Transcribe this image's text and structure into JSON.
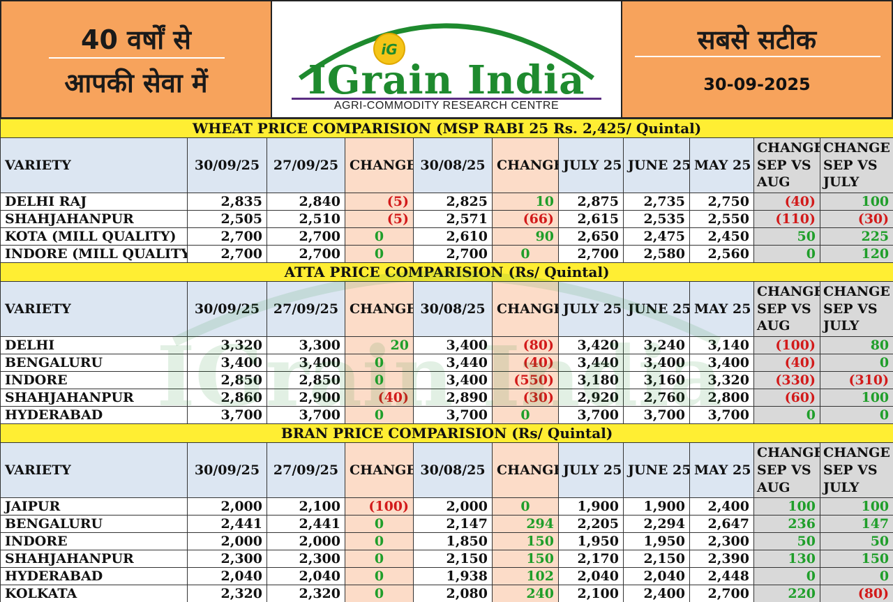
{
  "header": {
    "tagline_line1": "40 वर्षों से",
    "tagline_line2": "आपकी सेवा में",
    "accuracy": "सबसे सटीक",
    "date": "30-09-2025",
    "logo_mark": "iG",
    "logo_name": "IGrain India",
    "logo_subtitle": "AGRI-COMMODITY RESEARCH CENTRE"
  },
  "watermark": "IGrain India",
  "columns": [
    "VARIETY",
    "30/09/25",
    "27/09/25",
    "CHANGE",
    "30/08/25",
    "CHANGE",
    "JULY 25",
    "JUNE 25",
    "MAY 25",
    "CHANGE SEP VS AUG",
    "CHANGE SEP VS JULY"
  ],
  "colors": {
    "header_orange": "#f7a35c",
    "section_yellow": "#ffee33",
    "header_blue": "#dce6f2",
    "change_peach": "#fcdcc8",
    "compare_grey": "#d9d9d9",
    "negative_red": "#d21a1a",
    "positive_green": "#1f9e2a",
    "logo_green": "#1e8a2e"
  },
  "sections": [
    {
      "title": "WHEAT PRICE COMPARISION (MSP RABI 25 Rs. 2,425/ Quintal)",
      "rows": [
        [
          "DELHI RAJ",
          "2,835",
          "2,840",
          "(5)",
          "2,825",
          "10",
          "2,875",
          "2,735",
          "2,750",
          "(40)",
          "100"
        ],
        [
          "SHAHJAHANPUR",
          "2,505",
          "2,510",
          "(5)",
          "2,571",
          "(66)",
          "2,615",
          "2,535",
          "2,550",
          "(110)",
          "(30)"
        ],
        [
          "KOTA (MILL QUALITY)",
          "2,700",
          "2,700",
          "0",
          "2,610",
          "90",
          "2,650",
          "2,475",
          "2,450",
          "50",
          "225"
        ],
        [
          "INDORE (MILL QUALITY)",
          "2,700",
          "2,700",
          "0",
          "2,700",
          "0",
          "2,700",
          "2,580",
          "2,560",
          "0",
          "120"
        ]
      ]
    },
    {
      "title": "ATTA PRICE COMPARISION (Rs/ Quintal)",
      "rows": [
        [
          "DELHI",
          "3,320",
          "3,300",
          "20",
          "3,400",
          "(80)",
          "3,420",
          "3,240",
          "3,140",
          "(100)",
          "80"
        ],
        [
          "BENGALURU",
          "3,400",
          "3,400",
          "0",
          "3,440",
          "(40)",
          "3,440",
          "3,400",
          "3,400",
          "(40)",
          "0"
        ],
        [
          "INDORE",
          "2,850",
          "2,850",
          "0",
          "3,400",
          "(550)",
          "3,180",
          "3,160",
          "3,320",
          "(330)",
          "(310)"
        ],
        [
          "SHAHJAHANPUR",
          "2,860",
          "2,900",
          "(40)",
          "2,890",
          "(30)",
          "2,920",
          "2,760",
          "2,800",
          "(60)",
          "100"
        ],
        [
          "HYDERABAD",
          "3,700",
          "3,700",
          "0",
          "3,700",
          "0",
          "3,700",
          "3,700",
          "3,700",
          "0",
          "0"
        ]
      ]
    },
    {
      "title": "BRAN PRICE COMPARISION (Rs/ Quintal)",
      "rows": [
        [
          "JAIPUR",
          "2,000",
          "2,100",
          "(100)",
          "2,000",
          "0",
          "1,900",
          "1,900",
          "2,400",
          "100",
          "100"
        ],
        [
          "BENGALURU",
          "2,441",
          "2,441",
          "0",
          "2,147",
          "294",
          "2,205",
          "2,294",
          "2,647",
          "236",
          "147"
        ],
        [
          "INDORE",
          "2,000",
          "2,000",
          "0",
          "1,850",
          "150",
          "1,950",
          "1,950",
          "2,300",
          "50",
          "50"
        ],
        [
          "SHAHJAHANPUR",
          "2,300",
          "2,300",
          "0",
          "2,150",
          "150",
          "2,170",
          "2,150",
          "2,390",
          "130",
          "150"
        ],
        [
          "HYDERABAD",
          "2,040",
          "2,040",
          "0",
          "1,938",
          "102",
          "2,040",
          "2,040",
          "2,448",
          "0",
          "0"
        ],
        [
          "KOLKATA",
          "2,320",
          "2,320",
          "0",
          "2,080",
          "240",
          "2,100",
          "2,400",
          "2,700",
          "220",
          "(80)"
        ]
      ]
    }
  ]
}
